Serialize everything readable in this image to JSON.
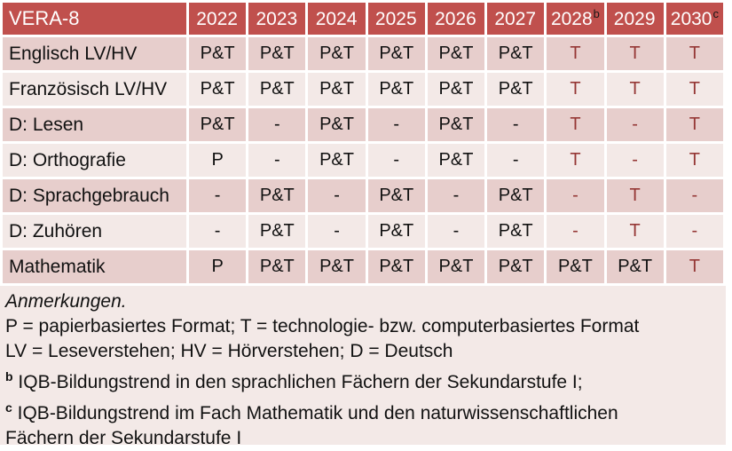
{
  "colors": {
    "header_bg": "#C0504D",
    "header_text": "#FFFFFF",
    "band_dark": "#E7CECC",
    "band_light": "#F3E9E7",
    "notes_bg": "#F3E9E7",
    "red_text": "#953735",
    "sup_text": "#161616",
    "text": "#111111"
  },
  "table": {
    "title": "VERA-8",
    "columns": [
      {
        "label": "2022",
        "sup": ""
      },
      {
        "label": "2023",
        "sup": ""
      },
      {
        "label": "2024",
        "sup": ""
      },
      {
        "label": "2025",
        "sup": ""
      },
      {
        "label": "2026",
        "sup": ""
      },
      {
        "label": "2027",
        "sup": ""
      },
      {
        "label": "2028",
        "sup": "b"
      },
      {
        "label": "2029",
        "sup": ""
      },
      {
        "label": "2030",
        "sup": "c"
      }
    ],
    "rows": [
      {
        "label": "Englisch LV/HV",
        "cells": [
          {
            "v": "P&T",
            "red": false
          },
          {
            "v": "P&T",
            "red": false
          },
          {
            "v": "P&T",
            "red": false
          },
          {
            "v": "P&T",
            "red": false
          },
          {
            "v": "P&T",
            "red": false
          },
          {
            "v": "P&T",
            "red": false
          },
          {
            "v": "T",
            "red": true
          },
          {
            "v": "T",
            "red": true
          },
          {
            "v": "T",
            "red": true
          }
        ]
      },
      {
        "label": "Französisch LV/HV",
        "cells": [
          {
            "v": "P&T",
            "red": false
          },
          {
            "v": "P&T",
            "red": false
          },
          {
            "v": "P&T",
            "red": false
          },
          {
            "v": "P&T",
            "red": false
          },
          {
            "v": "P&T",
            "red": false
          },
          {
            "v": "P&T",
            "red": false
          },
          {
            "v": "T",
            "red": true
          },
          {
            "v": "T",
            "red": true
          },
          {
            "v": "T",
            "red": true
          }
        ]
      },
      {
        "label": "D: Lesen",
        "cells": [
          {
            "v": "P&T",
            "red": false
          },
          {
            "v": "-",
            "red": false
          },
          {
            "v": "P&T",
            "red": false
          },
          {
            "v": "-",
            "red": false
          },
          {
            "v": "P&T",
            "red": false
          },
          {
            "v": "-",
            "red": false
          },
          {
            "v": "T",
            "red": true
          },
          {
            "v": "-",
            "red": true
          },
          {
            "v": "T",
            "red": true
          }
        ]
      },
      {
        "label": "D: Orthografie",
        "cells": [
          {
            "v": "P",
            "red": false
          },
          {
            "v": "-",
            "red": false
          },
          {
            "v": "P&T",
            "red": false
          },
          {
            "v": "-",
            "red": false
          },
          {
            "v": "P&T",
            "red": false
          },
          {
            "v": "-",
            "red": false
          },
          {
            "v": "T",
            "red": true
          },
          {
            "v": "-",
            "red": true
          },
          {
            "v": "T",
            "red": true
          }
        ]
      },
      {
        "label": "D: Sprachgebrauch",
        "cells": [
          {
            "v": "-",
            "red": false
          },
          {
            "v": "P&T",
            "red": false
          },
          {
            "v": "-",
            "red": false
          },
          {
            "v": "P&T",
            "red": false
          },
          {
            "v": "-",
            "red": false
          },
          {
            "v": "P&T",
            "red": false
          },
          {
            "v": "-",
            "red": true
          },
          {
            "v": "T",
            "red": true
          },
          {
            "v": "-",
            "red": true
          }
        ]
      },
      {
        "label": "D: Zuhören",
        "cells": [
          {
            "v": "-",
            "red": false
          },
          {
            "v": "P&T",
            "red": false
          },
          {
            "v": "-",
            "red": false
          },
          {
            "v": "P&T",
            "red": false
          },
          {
            "v": "-",
            "red": false
          },
          {
            "v": "P&T",
            "red": false
          },
          {
            "v": "-",
            "red": true
          },
          {
            "v": "T",
            "red": true
          },
          {
            "v": "-",
            "red": true
          }
        ]
      },
      {
        "label": "Mathematik",
        "cells": [
          {
            "v": "P",
            "red": false
          },
          {
            "v": "P&T",
            "red": false
          },
          {
            "v": "P&T",
            "red": false
          },
          {
            "v": "P&T",
            "red": false
          },
          {
            "v": "P&T",
            "red": false
          },
          {
            "v": "P&T",
            "red": false
          },
          {
            "v": "P&T",
            "red": false
          },
          {
            "v": "P&T",
            "red": false
          },
          {
            "v": "T",
            "red": true
          }
        ]
      }
    ]
  },
  "notes": {
    "heading": "Anmerkungen.",
    "format_line": "P = papierbasiertes Format; T = technologie- bzw. computerbasiertes Format",
    "abbrev_line": "LV = Leseverstehen; HV = Hörverstehen; D = Deutsch",
    "footnotes": [
      {
        "sup": "b",
        "text": "IQB-Bildungstrend in den sprachlichen Fächern der Sekundarstufe I;"
      },
      {
        "sup": "c",
        "text": "IQB-Bildungstrend im Fach Mathematik und den naturwissenschaftlichen Fächern der Sekundarstufe I"
      }
    ]
  }
}
